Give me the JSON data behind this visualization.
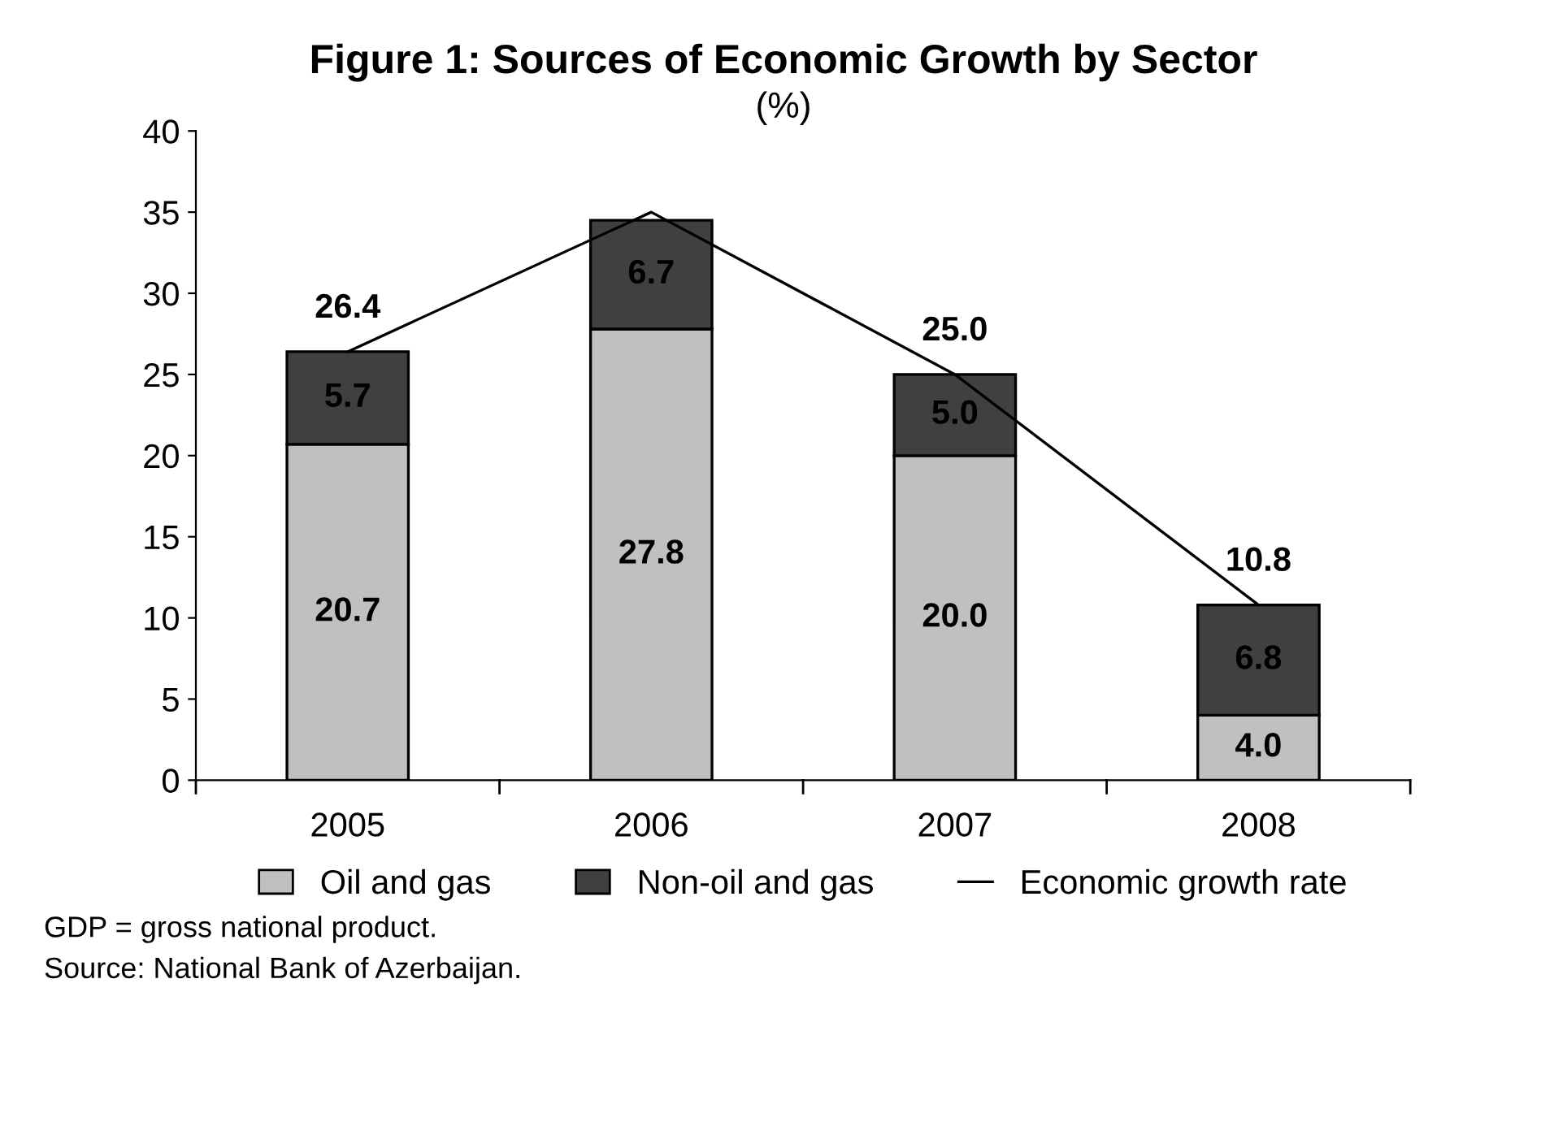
{
  "chart_data": {
    "type": "bar",
    "title": "Figure 1: Sources of Economic Growth by Sector",
    "subtitle": "(%)",
    "categories": [
      "2005",
      "2006",
      "2007",
      "2008"
    ],
    "stacked": true,
    "series": [
      {
        "name": "Oil and gas",
        "color": "#c0c0c0",
        "values": [
          20.7,
          27.8,
          20.0,
          4.0
        ],
        "value_labels": [
          "20.7",
          "27.8",
          "20.0",
          "4.0"
        ]
      },
      {
        "name": "Non-oil and gas",
        "color": "#404040",
        "values": [
          5.7,
          6.7,
          5.0,
          6.8
        ],
        "value_labels": [
          "5.7",
          "6.7",
          "5.0",
          "6.8"
        ]
      },
      {
        "name": "Economic growth rate",
        "type": "line",
        "color": "#000000",
        "values": [
          26.4,
          35.0,
          25.0,
          10.8
        ],
        "value_labels": [
          "26.4",
          null,
          "25.0",
          "10.8"
        ]
      }
    ],
    "ylim": [
      0,
      40
    ],
    "yticks": [
      0,
      5,
      10,
      15,
      20,
      25,
      30,
      35,
      40
    ],
    "grid": false,
    "legend": "bottom",
    "marker": "none",
    "line_style": "solid",
    "annotations": [
      "GDP = gross national product.",
      "Source: National Bank of Azerbaijan."
    ]
  }
}
